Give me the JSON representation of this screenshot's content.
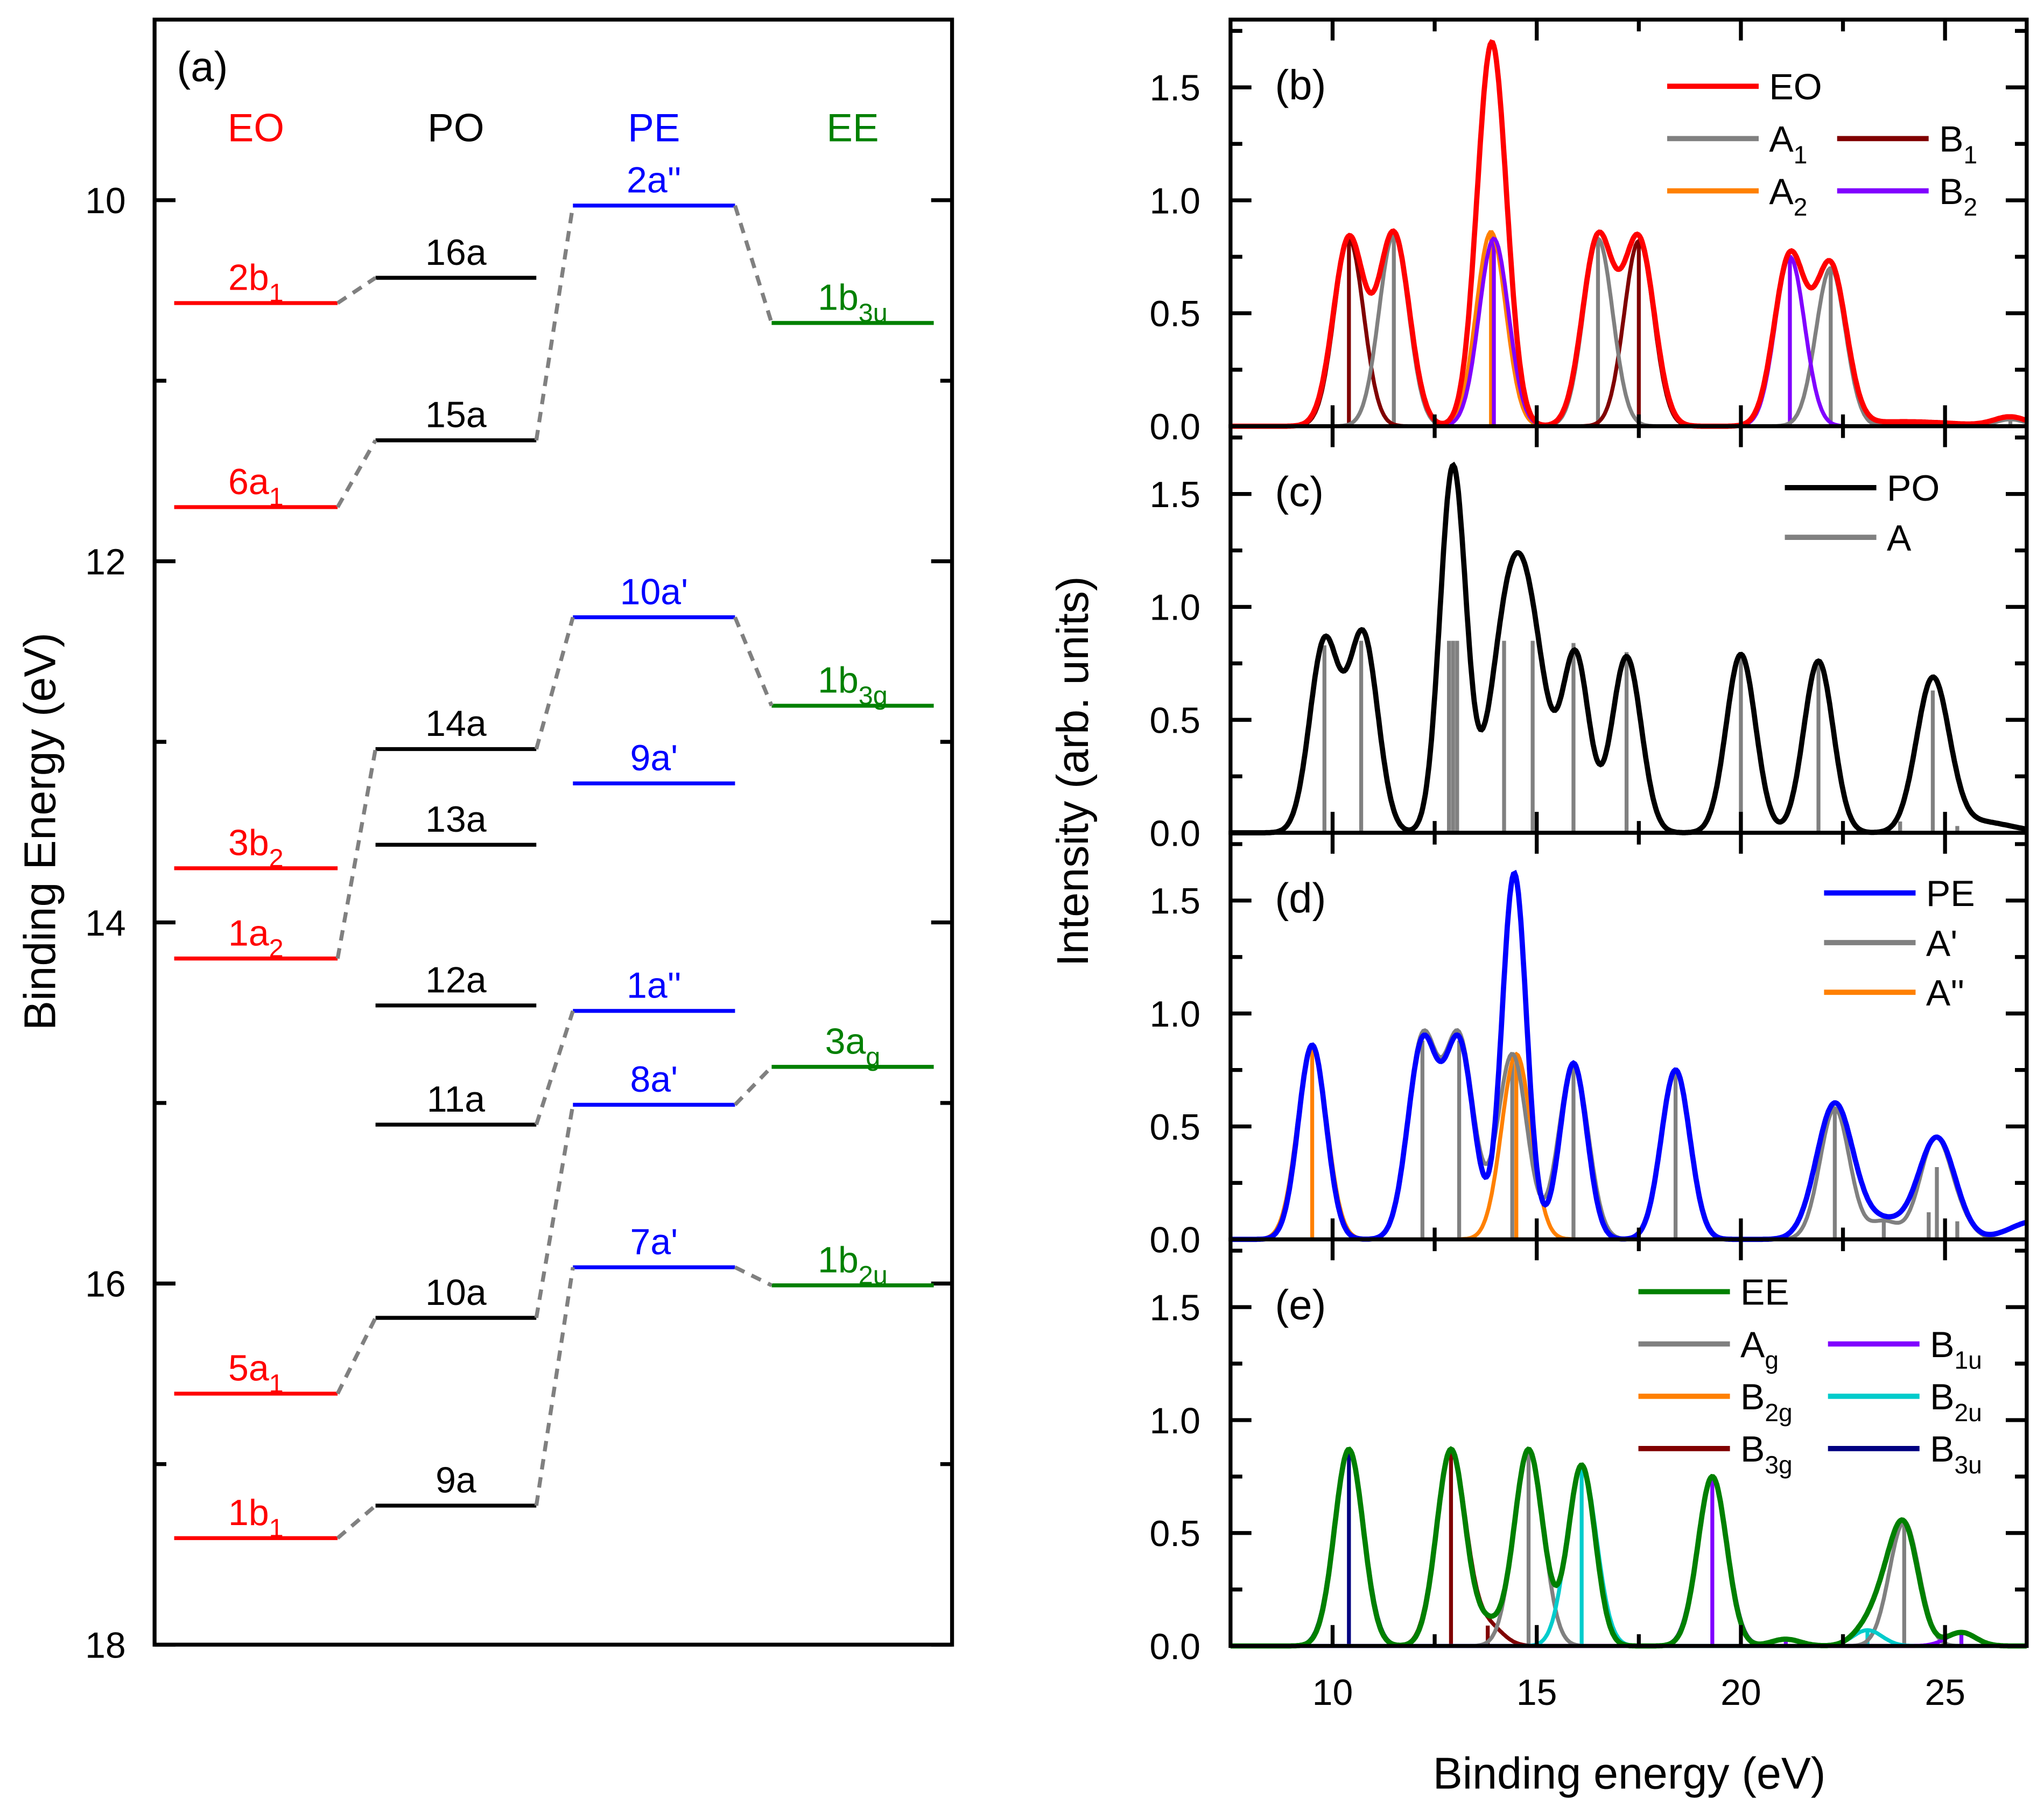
{
  "chart_data": [
    {
      "type": "energy-level-diagram",
      "panel_label": "(a)",
      "ylabel": "Binding Energy (eV)",
      "ylim": [
        9,
        18
      ],
      "yticks": [
        10,
        12,
        14,
        16,
        18
      ],
      "columns": [
        {
          "name": "EO",
          "color": "#ff0000",
          "levels": [
            {
              "id": "2b1",
              "text": "2b",
              "sub": "1",
              "e": 10.57
            },
            {
              "id": "6a1",
              "text": "6a",
              "sub": "1",
              "e": 11.7
            },
            {
              "id": "3b2",
              "text": "3b",
              "sub": "2",
              "e": 13.7
            },
            {
              "id": "1a2",
              "text": "1a",
              "sub": "2",
              "e": 14.2
            },
            {
              "id": "5a1",
              "text": "5a",
              "sub": "1",
              "e": 16.61
            },
            {
              "id": "1b1",
              "text": "1b",
              "sub": "1",
              "e": 17.41
            }
          ]
        },
        {
          "name": "PO",
          "color": "#000000",
          "levels": [
            {
              "id": "16a",
              "text": "16a",
              "sub": "",
              "e": 10.43
            },
            {
              "id": "15a",
              "text": "15a",
              "sub": "",
              "e": 11.33
            },
            {
              "id": "14a",
              "text": "14a",
              "sub": "",
              "e": 13.04
            },
            {
              "id": "13a",
              "text": "13a",
              "sub": "",
              "e": 13.57
            },
            {
              "id": "12a",
              "text": "12a",
              "sub": "",
              "e": 14.46
            },
            {
              "id": "11a",
              "text": "11a",
              "sub": "",
              "e": 15.12
            },
            {
              "id": "10a",
              "text": "10a",
              "sub": "",
              "e": 16.19
            },
            {
              "id": "9a",
              "text": "9a",
              "sub": "",
              "e": 17.23
            }
          ]
        },
        {
          "name": "PE",
          "color": "#0000ff",
          "levels": [
            {
              "id": "2a''",
              "text": "2a''",
              "sub": "",
              "e": 10.03
            },
            {
              "id": "10a'",
              "text": "10a'",
              "sub": "",
              "e": 12.31
            },
            {
              "id": "9a'",
              "text": "9a'",
              "sub": "",
              "e": 13.23
            },
            {
              "id": "1a''",
              "text": "1a''",
              "sub": "",
              "e": 14.49
            },
            {
              "id": "8a'",
              "text": "8a'",
              "sub": "",
              "e": 15.01
            },
            {
              "id": "7a'",
              "text": "7a'",
              "sub": "",
              "e": 15.91
            }
          ]
        },
        {
          "name": "EE",
          "color": "#008000",
          "levels": [
            {
              "id": "1b3u",
              "text": "1b",
              "sub": "3u",
              "e": 10.68
            },
            {
              "id": "1b3g",
              "text": "1b",
              "sub": "3g",
              "e": 12.8
            },
            {
              "id": "3ag",
              "text": "3a",
              "sub": "g",
              "e": 14.8
            },
            {
              "id": "1b2u",
              "text": "1b",
              "sub": "2u",
              "e": 16.01
            }
          ]
        }
      ],
      "correlations": [
        [
          "EO",
          "2b1",
          "PO",
          "16a"
        ],
        [
          "EO",
          "6a1",
          "PO",
          "15a"
        ],
        [
          "EO",
          "1a2",
          "PO",
          "14a"
        ],
        [
          "EO",
          "5a1",
          "PO",
          "10a"
        ],
        [
          "EO",
          "1b1",
          "PO",
          "9a"
        ],
        [
          "PO",
          "15a",
          "PE",
          "2a''"
        ],
        [
          "PO",
          "14a",
          "PE",
          "10a'"
        ],
        [
          "PO",
          "11a",
          "PE",
          "1a''"
        ],
        [
          "PO",
          "10a",
          "PE",
          "8a'"
        ],
        [
          "PO",
          "9a",
          "PE",
          "7a'"
        ],
        [
          "PE",
          "2a''",
          "EE",
          "1b3u"
        ],
        [
          "PE",
          "10a'",
          "EE",
          "1b3g"
        ],
        [
          "PE",
          "8a'",
          "EE",
          "3ag"
        ],
        [
          "PE",
          "7a'",
          "EE",
          "1b2u"
        ]
      ]
    },
    {
      "type": "stick-spectrum",
      "panels_shared": {
        "xlabel": "Binding energy (eV)",
        "ylabel": "Intensity (arb. units)",
        "xlim": [
          7.5,
          27
        ],
        "xticks": [
          10,
          15,
          20,
          25
        ],
        "ylim": [
          0,
          1.8
        ],
        "yticks": [
          "0.0",
          "0.5",
          "1.0",
          "1.5"
        ]
      },
      "panels": [
        {
          "label": "(b)",
          "envelope": {
            "name": "EO",
            "color": "#ff0000"
          },
          "legend": [
            {
              "name": "EO",
              "sub": "",
              "color": "#ff0000"
            },
            {
              "name": "A",
              "sub": "1",
              "color": "#808080"
            },
            {
              "name": "B",
              "sub": "1",
              "color": "#800000"
            },
            {
              "name": "A",
              "sub": "2",
              "color": "#ff8000"
            },
            {
              "name": "B",
              "sub": "2",
              "color": "#8000ff"
            }
          ],
          "symmetry_colors": {
            "A1": "#808080",
            "B1": "#800000",
            "A2": "#ff8000",
            "B2": "#8000ff"
          },
          "sticks": [
            {
              "e": 10.4,
              "h": 0.83,
              "sym": "B1"
            },
            {
              "e": 11.5,
              "h": 0.85,
              "sym": "A1"
            },
            {
              "e": 13.88,
              "h": 0.86,
              "sym": "A2"
            },
            {
              "e": 13.95,
              "h": 0.83,
              "sym": "B2"
            },
            {
              "e": 16.5,
              "h": 0.83,
              "sym": "A1"
            },
            {
              "e": 17.5,
              "h": 0.82,
              "sym": "B1"
            },
            {
              "e": 21.2,
              "h": 0.75,
              "sym": "B2"
            },
            {
              "e": 22.2,
              "h": 0.7,
              "sym": "A1"
            },
            {
              "e": 26.6,
              "h": 0.03,
              "sym": "A1"
            }
          ],
          "envelope_peaks": [
            {
              "e": 10.4,
              "h": 0.83,
              "w": 0.38
            },
            {
              "e": 11.5,
              "h": 0.85,
              "w": 0.38
            },
            {
              "e": 13.9,
              "h": 1.7,
              "w": 0.36
            },
            {
              "e": 16.5,
              "h": 0.83,
              "w": 0.38
            },
            {
              "e": 17.5,
              "h": 0.82,
              "w": 0.38
            },
            {
              "e": 21.2,
              "h": 0.75,
              "w": 0.38
            },
            {
              "e": 22.2,
              "h": 0.7,
              "w": 0.38
            },
            {
              "e": 24.0,
              "h": 0.02,
              "w": 1.2
            },
            {
              "e": 26.6,
              "h": 0.04,
              "w": 0.4
            }
          ]
        },
        {
          "label": "(c)",
          "envelope": {
            "name": "PO",
            "color": "#000000"
          },
          "legend": [
            {
              "name": "PO",
              "sub": "",
              "color": "#000000"
            },
            {
              "name": "A",
              "sub": "",
              "color": "#808080"
            }
          ],
          "symmetry_colors": {
            "A": "#808080"
          },
          "sticks": [
            {
              "e": 9.8,
              "h": 0.83,
              "sym": "A"
            },
            {
              "e": 10.7,
              "h": 0.85,
              "sym": "A"
            },
            {
              "e": 12.85,
              "h": 0.85,
              "sym": "A"
            },
            {
              "e": 12.95,
              "h": 0.85,
              "sym": "A"
            },
            {
              "e": 13.05,
              "h": 0.85,
              "sym": "A"
            },
            {
              "e": 14.2,
              "h": 0.85,
              "sym": "A"
            },
            {
              "e": 14.9,
              "h": 0.85,
              "sym": "A"
            },
            {
              "e": 15.9,
              "h": 0.84,
              "sym": "A"
            },
            {
              "e": 17.2,
              "h": 0.8,
              "sym": "A"
            },
            {
              "e": 20.0,
              "h": 0.78,
              "sym": "A"
            },
            {
              "e": 21.9,
              "h": 0.75,
              "sym": "A"
            },
            {
              "e": 24.7,
              "h": 0.63,
              "sym": "A"
            },
            {
              "e": 23.9,
              "h": 0.05,
              "sym": "A"
            },
            {
              "e": 25.3,
              "h": 0.03,
              "sym": "A"
            }
          ],
          "envelope_peaks": [
            {
              "e": 9.8,
              "h": 0.84,
              "w": 0.36
            },
            {
              "e": 10.75,
              "h": 0.87,
              "w": 0.36
            },
            {
              "e": 12.95,
              "h": 1.62,
              "w": 0.32
            },
            {
              "e": 14.25,
              "h": 0.82,
              "w": 0.42
            },
            {
              "e": 14.85,
              "h": 0.78,
              "w": 0.42
            },
            {
              "e": 15.95,
              "h": 0.78,
              "w": 0.33
            },
            {
              "e": 17.2,
              "h": 0.78,
              "w": 0.36
            },
            {
              "e": 20.0,
              "h": 0.79,
              "w": 0.36
            },
            {
              "e": 21.9,
              "h": 0.76,
              "w": 0.36
            },
            {
              "e": 24.7,
              "h": 0.67,
              "w": 0.4
            },
            {
              "e": 25.8,
              "h": 0.05,
              "w": 0.8
            }
          ]
        },
        {
          "label": "(d)",
          "envelope": {
            "name": "PE",
            "color": "#0000ff"
          },
          "legend": [
            {
              "name": "PE",
              "sub": "",
              "color": "#0000ff"
            },
            {
              "name": "A'",
              "sub": "",
              "color": "#808080"
            },
            {
              "name": "A''",
              "sub": "",
              "color": "#ff8000"
            }
          ],
          "symmetry_colors": {
            "A'": "#808080",
            "A''": "#ff8000"
          },
          "sticks": [
            {
              "e": 9.5,
              "h": 0.85,
              "sym": "A''"
            },
            {
              "e": 12.2,
              "h": 0.88,
              "sym": "A'"
            },
            {
              "e": 13.1,
              "h": 0.88,
              "sym": "A'"
            },
            {
              "e": 14.4,
              "h": 0.82,
              "sym": "A'"
            },
            {
              "e": 14.5,
              "h": 0.82,
              "sym": "A''"
            },
            {
              "e": 15.9,
              "h": 0.78,
              "sym": "A'"
            },
            {
              "e": 18.4,
              "h": 0.75,
              "sym": "A'"
            },
            {
              "e": 22.3,
              "h": 0.58,
              "sym": "A'"
            },
            {
              "e": 24.8,
              "h": 0.32,
              "sym": "A'"
            },
            {
              "e": 24.6,
              "h": 0.12,
              "sym": "A'"
            },
            {
              "e": 23.5,
              "h": 0.08,
              "sym": "A'"
            },
            {
              "e": 25.3,
              "h": 0.08,
              "sym": "A'"
            }
          ],
          "envelope_peaks": [
            {
              "e": 9.5,
              "h": 0.86,
              "w": 0.34
            },
            {
              "e": 12.2,
              "h": 0.86,
              "w": 0.36
            },
            {
              "e": 13.1,
              "h": 0.86,
              "w": 0.36
            },
            {
              "e": 14.45,
              "h": 1.62,
              "w": 0.3
            },
            {
              "e": 15.9,
              "h": 0.78,
              "w": 0.33
            },
            {
              "e": 18.4,
              "h": 0.75,
              "w": 0.35
            },
            {
              "e": 22.3,
              "h": 0.6,
              "w": 0.45
            },
            {
              "e": 23.5,
              "h": 0.08,
              "w": 0.5
            },
            {
              "e": 24.8,
              "h": 0.45,
              "w": 0.45
            },
            {
              "e": 27.2,
              "h": 0.08,
              "w": 0.6
            }
          ]
        },
        {
          "label": "(e)",
          "envelope": {
            "name": "EE",
            "color": "#008000"
          },
          "legend": [
            {
              "name": "EE",
              "sub": "",
              "color": "#008000"
            },
            {
              "name": "A",
              "sub": "g",
              "color": "#808080"
            },
            {
              "name": "B",
              "sub": "1u",
              "color": "#8000ff"
            },
            {
              "name": "B",
              "sub": "2g",
              "color": "#ff8000"
            },
            {
              "name": "B",
              "sub": "2u",
              "color": "#00cccc"
            },
            {
              "name": "B",
              "sub": "3g",
              "color": "#800000"
            },
            {
              "name": "B",
              "sub": "3u",
              "color": "#000080"
            }
          ],
          "symmetry_colors": {
            "Ag": "#808080",
            "B1u": "#8000ff",
            "B2g": "#ff8000",
            "B2u": "#00cccc",
            "B3g": "#800000",
            "B3u": "#000080"
          },
          "sticks": [
            {
              "e": 10.4,
              "h": 0.87,
              "sym": "B3u"
            },
            {
              "e": 12.9,
              "h": 0.87,
              "sym": "B3g"
            },
            {
              "e": 13.8,
              "h": 0.09,
              "sym": "B3g"
            },
            {
              "e": 14.8,
              "h": 0.87,
              "sym": "Ag"
            },
            {
              "e": 16.1,
              "h": 0.8,
              "sym": "B2u"
            },
            {
              "e": 19.3,
              "h": 0.75,
              "sym": "B1u"
            },
            {
              "e": 21.1,
              "h": 0.03,
              "sym": "B1u"
            },
            {
              "e": 23.1,
              "h": 0.07,
              "sym": "B2u"
            },
            {
              "e": 24.0,
              "h": 0.55,
              "sym": "Ag"
            },
            {
              "e": 25.4,
              "h": 0.06,
              "sym": "B1u"
            }
          ],
          "envelope_peaks": [
            {
              "e": 10.4,
              "h": 0.87,
              "w": 0.35
            },
            {
              "e": 12.9,
              "h": 0.87,
              "w": 0.35
            },
            {
              "e": 13.8,
              "h": 0.09,
              "w": 0.3
            },
            {
              "e": 14.8,
              "h": 0.87,
              "w": 0.35
            },
            {
              "e": 16.1,
              "h": 0.8,
              "w": 0.33
            },
            {
              "e": 19.3,
              "h": 0.75,
              "w": 0.35
            },
            {
              "e": 21.1,
              "h": 0.03,
              "w": 0.35
            },
            {
              "e": 23.1,
              "h": 0.08,
              "w": 0.35
            },
            {
              "e": 23.5,
              "h": 0.12,
              "w": 0.3
            },
            {
              "e": 24.0,
              "h": 0.52,
              "w": 0.35
            },
            {
              "e": 25.4,
              "h": 0.06,
              "w": 0.35
            }
          ]
        }
      ]
    }
  ]
}
